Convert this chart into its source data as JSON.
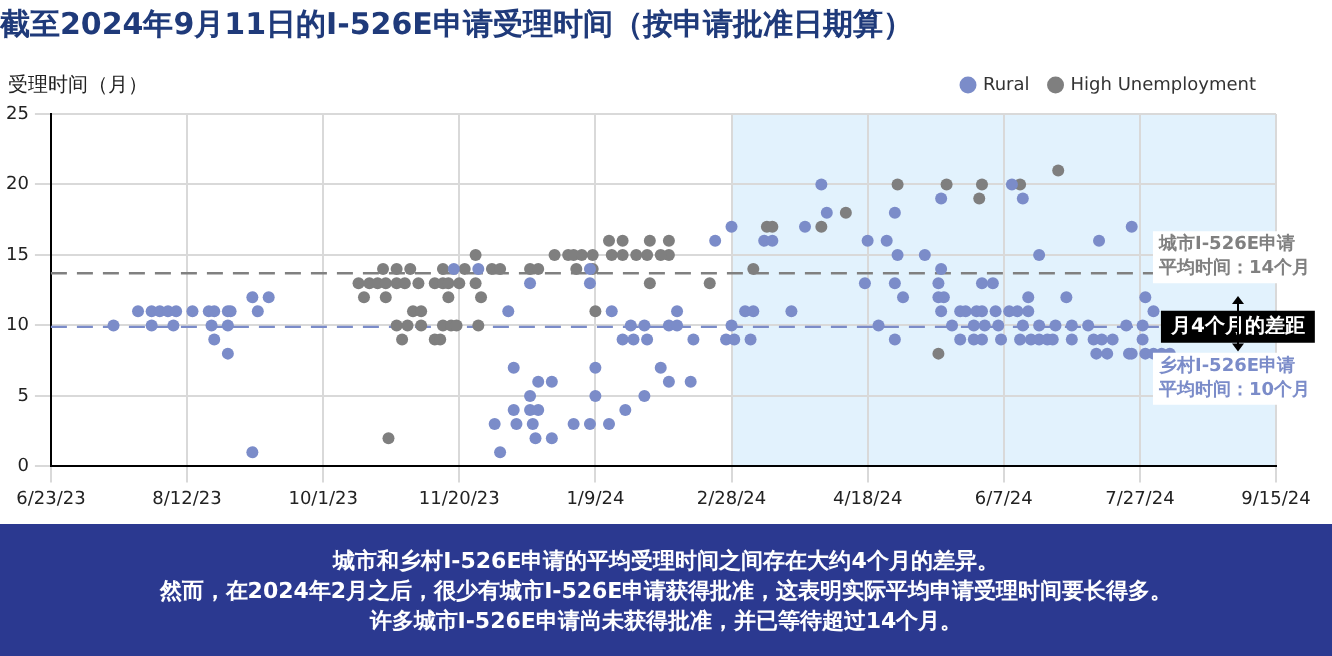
{
  "chart_data": {
    "type": "scatter",
    "title": "截至2024年9月11日的I-526E申请受理时间（按申请批准日期算）",
    "ylabel": "受理时间（月）",
    "xlim": [
      "2023-06-23",
      "2024-09-15"
    ],
    "xticks": [
      {
        "value": "2023-06-23",
        "label": "6/23/23"
      },
      {
        "value": "2023-08-12",
        "label": "8/12/23"
      },
      {
        "value": "2023-10-01",
        "label": "10/1/23"
      },
      {
        "value": "2023-11-20",
        "label": "11/20/23"
      },
      {
        "value": "2024-01-09",
        "label": "1/9/24"
      },
      {
        "value": "2024-02-28",
        "label": "2/28/24"
      },
      {
        "value": "2024-04-18",
        "label": "4/18/24"
      },
      {
        "value": "2024-06-07",
        "label": "6/7/24"
      },
      {
        "value": "2024-07-27",
        "label": "7/27/24"
      },
      {
        "value": "2024-09-15",
        "label": "9/15/24"
      }
    ],
    "ylim": [
      0,
      25
    ],
    "yticks": [
      0,
      5,
      10,
      15,
      20,
      25
    ],
    "grid": true,
    "legend": "top right",
    "marker": "circle",
    "series": [
      {
        "name": "Rural",
        "color": "#7b8cc9",
        "x": [
          "2023-07-16",
          "2023-07-25",
          "2023-07-30",
          "2023-07-30",
          "2023-08-02",
          "2023-08-05",
          "2023-08-08",
          "2023-08-07",
          "2023-08-14",
          "2023-08-20",
          "2023-08-22",
          "2023-08-21",
          "2023-08-22",
          "2023-08-27",
          "2023-08-28",
          "2023-08-27",
          "2023-08-27",
          "2023-09-05",
          "2023-09-07",
          "2023-09-05",
          "2023-09-11",
          "2023-11-18",
          "2023-11-27",
          "2023-12-08",
          "2023-12-03",
          "2023-12-05",
          "2023-12-10",
          "2023-12-10",
          "2023-12-11",
          "2023-12-16",
          "2023-12-16",
          "2023-12-16",
          "2023-12-17",
          "2023-12-18",
          "2023-12-19",
          "2023-12-19",
          "2023-12-24",
          "2023-12-24",
          "2024-01-01",
          "2024-01-07",
          "2024-01-07",
          "2024-01-07",
          "2024-01-09",
          "2024-01-09",
          "2024-01-14",
          "2024-01-15",
          "2024-01-20",
          "2024-01-19",
          "2024-01-22",
          "2024-01-23",
          "2024-01-27",
          "2024-01-27",
          "2024-01-28",
          "2024-02-02",
          "2024-02-05",
          "2024-02-05",
          "2024-02-08",
          "2024-02-08",
          "2024-02-14",
          "2024-02-13",
          "2024-02-22",
          "2024-02-28",
          "2024-02-28",
          "2024-02-26",
          "2024-02-29",
          "2024-03-04",
          "2024-03-07",
          "2024-03-06",
          "2024-03-11",
          "2024-03-14",
          "2024-03-21",
          "2024-03-26",
          "2024-04-01",
          "2024-04-03",
          "2024-04-17",
          "2024-04-18",
          "2024-04-22",
          "2024-04-25",
          "2024-04-28",
          "2024-04-29",
          "2024-04-28",
          "2024-05-01",
          "2024-04-28",
          "2024-05-09",
          "2024-05-15",
          "2024-05-15",
          "2024-05-14",
          "2024-05-14",
          "2024-05-16",
          "2024-05-15",
          "2024-05-19",
          "2024-05-22",
          "2024-05-24",
          "2024-05-22",
          "2024-05-27",
          "2024-05-28",
          "2024-05-27",
          "2024-05-30",
          "2024-05-31",
          "2024-05-30",
          "2024-05-30",
          "2024-06-03",
          "2024-06-04",
          "2024-06-05",
          "2024-06-06",
          "2024-06-09",
          "2024-06-10",
          "2024-06-14",
          "2024-06-12",
          "2024-06-13",
          "2024-06-14",
          "2024-06-16",
          "2024-06-16",
          "2024-06-17",
          "2024-06-20",
          "2024-06-20",
          "2024-06-20",
          "2024-06-23",
          "2024-06-25",
          "2024-06-26",
          "2024-06-30",
          "2024-07-02",
          "2024-07-02",
          "2024-07-08",
          "2024-07-10",
          "2024-07-12",
          "2024-07-11",
          "2024-07-13",
          "2024-07-15",
          "2024-07-17",
          "2024-07-22",
          "2024-07-23",
          "2024-07-24",
          "2024-07-24",
          "2024-07-28",
          "2024-07-28",
          "2024-07-29",
          "2024-07-29",
          "2024-08-01",
          "2024-08-01",
          "2024-08-04",
          "2024-08-07"
        ],
        "values": [
          10,
          11,
          11,
          10,
          11,
          11,
          11,
          10,
          11,
          11,
          11,
          10,
          9,
          11,
          11,
          10,
          8,
          12,
          11,
          1,
          12,
          14,
          14,
          11,
          3,
          1,
          7,
          4,
          3,
          13,
          5,
          4,
          3,
          2,
          6,
          4,
          6,
          2,
          3,
          3,
          13,
          14,
          7,
          5,
          3,
          11,
          4,
          9,
          10,
          9,
          5,
          10,
          9,
          7,
          6,
          10,
          11,
          10,
          9,
          6,
          16,
          17,
          10,
          9,
          9,
          11,
          11,
          9,
          16,
          16,
          11,
          17,
          20,
          18,
          13,
          16,
          10,
          16,
          18,
          15,
          13,
          12,
          9,
          15,
          19,
          14,
          13,
          12,
          12,
          11,
          10,
          11,
          11,
          9,
          10,
          11,
          9,
          13,
          10,
          9,
          11,
          13,
          11,
          10,
          9,
          11,
          20,
          19,
          11,
          9,
          10,
          11,
          12,
          9,
          15,
          10,
          9,
          9,
          9,
          10,
          12,
          10,
          9,
          10,
          9,
          16,
          8,
          9,
          8,
          9,
          10,
          8,
          17,
          8,
          10,
          9,
          12,
          8,
          11,
          8,
          8,
          8
        ]
      },
      {
        "name": "High Unemployment",
        "color": "#7f7f7f",
        "x": [
          "2023-10-14",
          "2023-10-16",
          "2023-10-18",
          "2023-10-21",
          "2023-10-23",
          "2023-10-24",
          "2023-10-24",
          "2023-10-25",
          "2023-10-28",
          "2023-10-28",
          "2023-10-28",
          "2023-10-30",
          "2023-10-31",
          "2023-11-01",
          "2023-11-02",
          "2023-11-03",
          "2023-11-05",
          "2023-11-06",
          "2023-11-06",
          "2023-11-11",
          "2023-11-13",
          "2023-11-11",
          "2023-11-14",
          "2023-11-14",
          "2023-11-16",
          "2023-11-16",
          "2023-11-14",
          "2023-11-17",
          "2023-11-19",
          "2023-11-20",
          "2023-11-22",
          "2023-11-26",
          "2023-11-26",
          "2023-11-28",
          "2023-11-27",
          "2023-12-02",
          "2023-12-05",
          "2023-12-16",
          "2023-12-19",
          "2023-12-25",
          "2023-12-30",
          "2024-01-01",
          "2024-01-02",
          "2024-01-04",
          "2024-01-08",
          "2024-01-08",
          "2024-01-09",
          "2024-01-14",
          "2024-01-15",
          "2024-01-19",
          "2024-01-19",
          "2024-01-24",
          "2024-01-29",
          "2024-01-29",
          "2024-01-28",
          "2024-02-05",
          "2024-02-05",
          "2024-02-02",
          "2024-02-20",
          "2024-03-07",
          "2024-03-12",
          "2024-03-14",
          "2024-04-01",
          "2024-04-10",
          "2024-04-29",
          "2024-05-14",
          "2024-05-17",
          "2024-05-29",
          "2024-05-30",
          "2024-06-13",
          "2024-06-27"
        ],
        "values": [
          13,
          12,
          13,
          13,
          14,
          12,
          13,
          2,
          14,
          13,
          10,
          9,
          13,
          10,
          14,
          11,
          13,
          11,
          10,
          9,
          9,
          13,
          14,
          13,
          12,
          13,
          10,
          10,
          10,
          13,
          14,
          15,
          13,
          12,
          10,
          14,
          14,
          14,
          14,
          15,
          15,
          15,
          14,
          15,
          15,
          14,
          11,
          16,
          15,
          16,
          15,
          15,
          16,
          13,
          15,
          16,
          15,
          15,
          13,
          14,
          17,
          17,
          17,
          18,
          20,
          8,
          20,
          19,
          20,
          20,
          21
        ]
      }
    ],
    "bands": [
      {
        "axis": "x",
        "from": "2024-02-28",
        "to": "2024-09-15",
        "color": "#e2f2fd"
      }
    ],
    "ref_lines": [
      {
        "axis": "y",
        "value": 13.7,
        "label": "城市I-526E申请平均时间：14个月",
        "color": "#808080",
        "line_style": "dashed"
      },
      {
        "axis": "y",
        "value": 9.9,
        "label": "乡村I-526E申请平均时间：10个月",
        "color": "#7b8cc9",
        "line_style": "dashed"
      }
    ],
    "annotations": [
      {
        "text": "月4个月的差距",
        "x": "2024-09-01",
        "y": 9.9
      },
      "城市和乡村I-526E申请的平均受理时间之间存在大约4个月的差异。",
      "然而，在2024年2月之后，很少有城市I-526E申请获得批准，这表明实际平均申请受理时间要长得多。",
      "许多城市I-526E申请尚未获得批准，并已等待超过14个月。"
    ]
  }
}
